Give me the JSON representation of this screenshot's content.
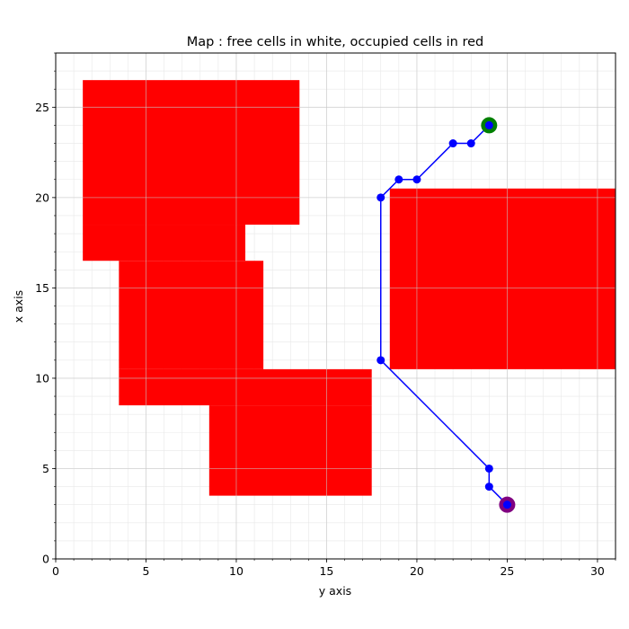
{
  "chart_data": {
    "type": "scatter",
    "title": "Map : free cells in white, occupied cells in red",
    "xlabel": "y axis",
    "ylabel": "x axis",
    "xlim": [
      0,
      31
    ],
    "ylim": [
      0,
      28
    ],
    "xticks": [
      0,
      5,
      10,
      15,
      20,
      25,
      30
    ],
    "yticks": [
      0,
      5,
      10,
      15,
      20,
      25
    ],
    "minor_tick_step": 1,
    "grid": true,
    "colors": {
      "occupied": "#ff0000",
      "path": "#0000ff",
      "start_marker": "#800080",
      "goal_marker": "#008000",
      "major_grid": "#c8c8c8",
      "minor_grid": "#e8e8e8"
    },
    "occupied_cells": [
      {
        "x": [
          1.5,
          13.5
        ],
        "y": [
          18.5,
          26.5
        ]
      },
      {
        "x": [
          1.5,
          10.5
        ],
        "y": [
          16.5,
          18.5
        ]
      },
      {
        "x": [
          3.5,
          11.5
        ],
        "y": [
          10.5,
          16.5
        ]
      },
      {
        "x": [
          3.5,
          17.5
        ],
        "y": [
          8.5,
          10.5
        ]
      },
      {
        "x": [
          8.5,
          17.5
        ],
        "y": [
          3.5,
          8.5
        ]
      },
      {
        "x": [
          18.5,
          31
        ],
        "y": [
          10.5,
          20.5
        ]
      }
    ],
    "path": {
      "x": [
        25,
        24,
        24,
        18,
        18,
        19,
        20,
        22,
        23,
        24
      ],
      "y": [
        3,
        4,
        5,
        11,
        20,
        21,
        21,
        23,
        23,
        24
      ]
    },
    "start": {
      "x": 25,
      "y": 3
    },
    "goal": {
      "x": 24,
      "y": 24
    }
  }
}
